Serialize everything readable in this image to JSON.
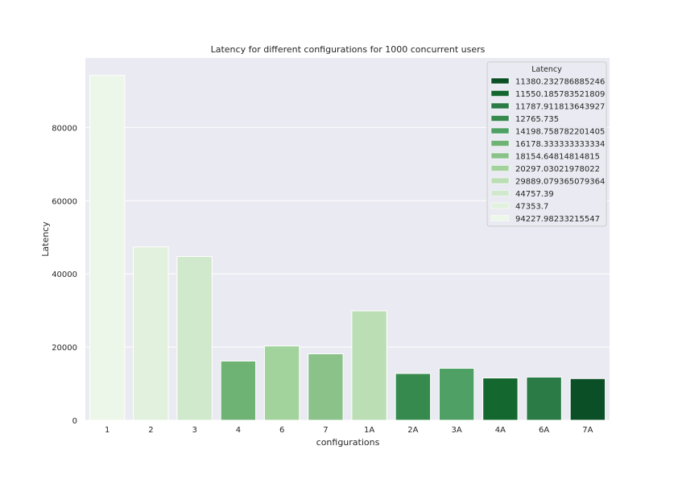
{
  "chart_data": {
    "type": "bar",
    "title": "Latency for different configurations for 1000 concurrent users",
    "xlabel": "configurations",
    "ylabel": "Latency",
    "ylim": [
      0,
      99000
    ],
    "yticks": [
      0,
      20000,
      40000,
      60000,
      80000
    ],
    "ytick_labels": [
      "0",
      "20000",
      "40000",
      "60000",
      "80000"
    ],
    "grid": true,
    "legend": {
      "title": "Latency",
      "placement": "top-right"
    },
    "categories": [
      "1",
      "2",
      "3",
      "4",
      "6",
      "7",
      "1A",
      "2A",
      "3A",
      "4A",
      "6A",
      "7A"
    ],
    "values": [
      94227.98233215547,
      47353.7,
      44757.39,
      16178.333333333334,
      20297.03021978022,
      18154.64814814815,
      29889.079365079364,
      12765.735,
      14198.758782201405,
      11550.185783521809,
      11787.911813643927,
      11380.232786885246
    ],
    "legend_entries": [
      {
        "label": "11380.232786885246",
        "color": "#0b4f26"
      },
      {
        "label": "11550.185783521809",
        "color": "#14672f"
      },
      {
        "label": "11787.911813643927",
        "color": "#2a7b45"
      },
      {
        "label": "12765.735",
        "color": "#368a4e"
      },
      {
        "label": "14198.758782201405",
        "color": "#4fa064"
      },
      {
        "label": "16178.333333333334",
        "color": "#6fb374"
      },
      {
        "label": "18154.64814814815",
        "color": "#8ac28a"
      },
      {
        "label": "20297.03021978022",
        "color": "#a3d39c"
      },
      {
        "label": "29889.079365079364",
        "color": "#bbdeb5"
      },
      {
        "label": "44757.39",
        "color": "#d0e8cc"
      },
      {
        "label": "47353.7",
        "color": "#e1f1dd"
      },
      {
        "label": "94227.98233215547",
        "color": "#ecf7e9"
      }
    ],
    "colors": {
      "plot_background": "#eaeaf2",
      "grid": "#ffffff",
      "legend_background": "#eaeaf2",
      "legend_border": "#cccccc"
    }
  }
}
